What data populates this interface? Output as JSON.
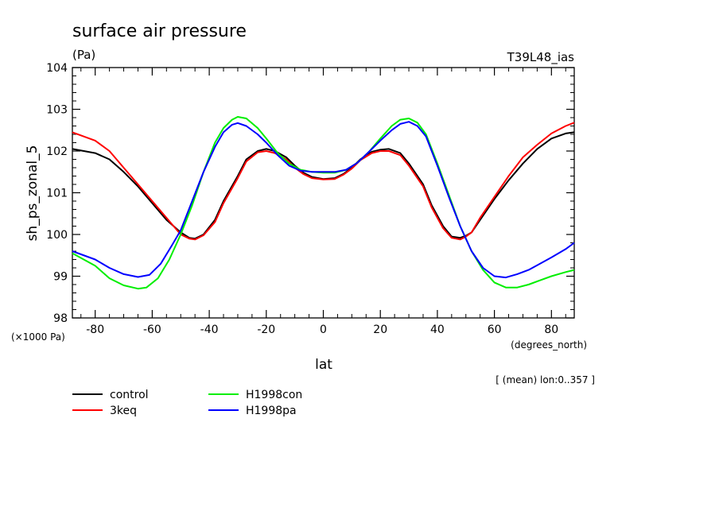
{
  "page": {
    "title": "surface air pressure",
    "units": "(Pa)",
    "run_label": "T39L48_ias",
    "y_scale_note": "(×1000 Pa)",
    "x_unit_note": "(degrees_north)",
    "region_note": "[ (mean) lon:0..357 ]"
  },
  "chart_data": {
    "type": "line",
    "title": "surface air pressure",
    "xlabel": "lat",
    "ylabel": "sh_ps_zonal_5",
    "xlim": [
      -88,
      88
    ],
    "ylim": [
      98,
      104
    ],
    "x_ticks": [
      -80,
      -60,
      -40,
      -20,
      0,
      20,
      40,
      60,
      80
    ],
    "y_ticks": [
      98,
      99,
      100,
      101,
      102,
      103,
      104
    ],
    "grid": false,
    "legend_position": "bottom-left",
    "series": [
      {
        "name": "control",
        "color": "#000000",
        "points": [
          [
            -88,
            102.05
          ],
          [
            -80,
            101.95
          ],
          [
            -75,
            101.8
          ],
          [
            -70,
            101.5
          ],
          [
            -65,
            101.15
          ],
          [
            -60,
            100.75
          ],
          [
            -55,
            100.35
          ],
          [
            -50,
            100.05
          ],
          [
            -47,
            99.92
          ],
          [
            -45,
            99.9
          ],
          [
            -42,
            100.0
          ],
          [
            -38,
            100.35
          ],
          [
            -35,
            100.8
          ],
          [
            -30,
            101.4
          ],
          [
            -27,
            101.8
          ],
          [
            -23,
            102.0
          ],
          [
            -20,
            102.05
          ],
          [
            -17,
            102.0
          ],
          [
            -13,
            101.85
          ],
          [
            -10,
            101.65
          ],
          [
            -7,
            101.48
          ],
          [
            -4,
            101.38
          ],
          [
            0,
            101.33
          ],
          [
            4,
            101.35
          ],
          [
            7,
            101.45
          ],
          [
            10,
            101.6
          ],
          [
            13,
            101.8
          ],
          [
            17,
            101.98
          ],
          [
            20,
            102.03
          ],
          [
            23,
            102.05
          ],
          [
            27,
            101.95
          ],
          [
            30,
            101.7
          ],
          [
            35,
            101.2
          ],
          [
            38,
            100.7
          ],
          [
            42,
            100.2
          ],
          [
            45,
            99.95
          ],
          [
            48,
            99.92
          ],
          [
            50,
            99.97
          ],
          [
            52,
            100.05
          ],
          [
            55,
            100.35
          ],
          [
            60,
            100.85
          ],
          [
            65,
            101.3
          ],
          [
            70,
            101.7
          ],
          [
            75,
            102.05
          ],
          [
            80,
            102.3
          ],
          [
            85,
            102.42
          ],
          [
            88,
            102.45
          ]
        ]
      },
      {
        "name": "3keq",
        "color": "#ff0000",
        "points": [
          [
            -88,
            102.45
          ],
          [
            -80,
            102.25
          ],
          [
            -75,
            102.0
          ],
          [
            -70,
            101.6
          ],
          [
            -65,
            101.2
          ],
          [
            -60,
            100.8
          ],
          [
            -55,
            100.4
          ],
          [
            -50,
            100.0
          ],
          [
            -47,
            99.9
          ],
          [
            -45,
            99.88
          ],
          [
            -42,
            99.98
          ],
          [
            -38,
            100.3
          ],
          [
            -35,
            100.75
          ],
          [
            -30,
            101.35
          ],
          [
            -27,
            101.75
          ],
          [
            -23,
            101.97
          ],
          [
            -20,
            102.0
          ],
          [
            -17,
            101.95
          ],
          [
            -13,
            101.8
          ],
          [
            -10,
            101.6
          ],
          [
            -7,
            101.45
          ],
          [
            -4,
            101.35
          ],
          [
            0,
            101.32
          ],
          [
            4,
            101.33
          ],
          [
            7,
            101.43
          ],
          [
            10,
            101.58
          ],
          [
            13,
            101.78
          ],
          [
            17,
            101.95
          ],
          [
            20,
            102.0
          ],
          [
            23,
            102.0
          ],
          [
            27,
            101.9
          ],
          [
            30,
            101.65
          ],
          [
            35,
            101.15
          ],
          [
            38,
            100.65
          ],
          [
            42,
            100.15
          ],
          [
            45,
            99.92
          ],
          [
            48,
            99.88
          ],
          [
            50,
            99.95
          ],
          [
            52,
            100.05
          ],
          [
            55,
            100.4
          ],
          [
            60,
            100.9
          ],
          [
            65,
            101.4
          ],
          [
            70,
            101.85
          ],
          [
            75,
            102.15
          ],
          [
            80,
            102.42
          ],
          [
            85,
            102.6
          ],
          [
            88,
            102.68
          ]
        ]
      },
      {
        "name": "H1998con",
        "color": "#00ee00",
        "points": [
          [
            -88,
            99.55
          ],
          [
            -80,
            99.25
          ],
          [
            -75,
            98.95
          ],
          [
            -70,
            98.78
          ],
          [
            -65,
            98.7
          ],
          [
            -62,
            98.73
          ],
          [
            -58,
            98.95
          ],
          [
            -54,
            99.4
          ],
          [
            -50,
            100.0
          ],
          [
            -46,
            100.7
          ],
          [
            -42,
            101.5
          ],
          [
            -38,
            102.2
          ],
          [
            -35,
            102.55
          ],
          [
            -32,
            102.75
          ],
          [
            -30,
            102.82
          ],
          [
            -27,
            102.78
          ],
          [
            -23,
            102.55
          ],
          [
            -20,
            102.3
          ],
          [
            -16,
            101.95
          ],
          [
            -12,
            101.7
          ],
          [
            -8,
            101.55
          ],
          [
            -4,
            101.5
          ],
          [
            0,
            101.48
          ],
          [
            4,
            101.48
          ],
          [
            8,
            101.55
          ],
          [
            12,
            101.72
          ],
          [
            16,
            101.98
          ],
          [
            20,
            102.3
          ],
          [
            24,
            102.6
          ],
          [
            27,
            102.75
          ],
          [
            30,
            102.78
          ],
          [
            33,
            102.68
          ],
          [
            36,
            102.4
          ],
          [
            40,
            101.7
          ],
          [
            44,
            100.95
          ],
          [
            48,
            100.2
          ],
          [
            52,
            99.6
          ],
          [
            56,
            99.15
          ],
          [
            60,
            98.85
          ],
          [
            64,
            98.73
          ],
          [
            68,
            98.73
          ],
          [
            72,
            98.8
          ],
          [
            76,
            98.9
          ],
          [
            80,
            99.0
          ],
          [
            85,
            99.1
          ],
          [
            88,
            99.15
          ]
        ]
      },
      {
        "name": "H1998pa",
        "color": "#0000ff",
        "points": [
          [
            -88,
            99.6
          ],
          [
            -80,
            99.4
          ],
          [
            -75,
            99.2
          ],
          [
            -70,
            99.05
          ],
          [
            -65,
            98.98
          ],
          [
            -61,
            99.03
          ],
          [
            -57,
            99.3
          ],
          [
            -53,
            99.75
          ],
          [
            -50,
            100.1
          ],
          [
            -46,
            100.8
          ],
          [
            -42,
            101.5
          ],
          [
            -38,
            102.1
          ],
          [
            -35,
            102.45
          ],
          [
            -32,
            102.63
          ],
          [
            -30,
            102.67
          ],
          [
            -27,
            102.6
          ],
          [
            -23,
            102.4
          ],
          [
            -20,
            102.2
          ],
          [
            -16,
            101.9
          ],
          [
            -12,
            101.65
          ],
          [
            -8,
            101.53
          ],
          [
            -4,
            101.5
          ],
          [
            0,
            101.5
          ],
          [
            4,
            101.5
          ],
          [
            8,
            101.55
          ],
          [
            12,
            101.72
          ],
          [
            16,
            101.98
          ],
          [
            20,
            102.25
          ],
          [
            24,
            102.5
          ],
          [
            27,
            102.65
          ],
          [
            30,
            102.7
          ],
          [
            33,
            102.6
          ],
          [
            36,
            102.35
          ],
          [
            40,
            101.65
          ],
          [
            44,
            100.9
          ],
          [
            48,
            100.2
          ],
          [
            52,
            99.6
          ],
          [
            56,
            99.2
          ],
          [
            60,
            99.0
          ],
          [
            64,
            98.97
          ],
          [
            68,
            99.05
          ],
          [
            72,
            99.15
          ],
          [
            76,
            99.3
          ],
          [
            80,
            99.45
          ],
          [
            85,
            99.65
          ],
          [
            88,
            99.8
          ]
        ]
      }
    ]
  }
}
